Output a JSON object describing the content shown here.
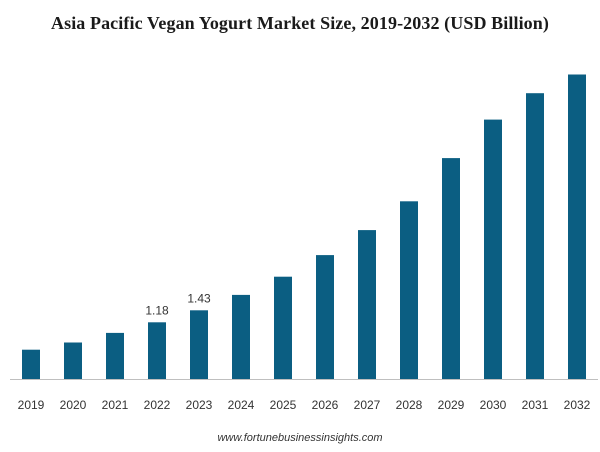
{
  "chart_data": {
    "type": "bar",
    "title": "Asia Pacific Vegan Yogurt Market Size, 2019-2032 (USD Billion)",
    "categories": [
      "2019",
      "2020",
      "2021",
      "2022",
      "2023",
      "2024",
      "2025",
      "2026",
      "2027",
      "2028",
      "2029",
      "2030",
      "2031",
      "2032"
    ],
    "series": [
      {
        "values": [
          0.61,
          0.76,
          0.96,
          1.18,
          1.43,
          1.75,
          2.13,
          2.58,
          3.1,
          3.7,
          4.6,
          5.4,
          5.95,
          6.34
        ],
        "color": "#0b5e82"
      }
    ],
    "data_labels": [
      {
        "category": "2022",
        "text": "1.18"
      },
      {
        "category": "2023",
        "text": "1.43"
      }
    ],
    "ylim": [
      0,
      6.6
    ],
    "grid": false,
    "y_axis_visible": false
  },
  "source_text": "www.fortunebusinessinsights.com"
}
